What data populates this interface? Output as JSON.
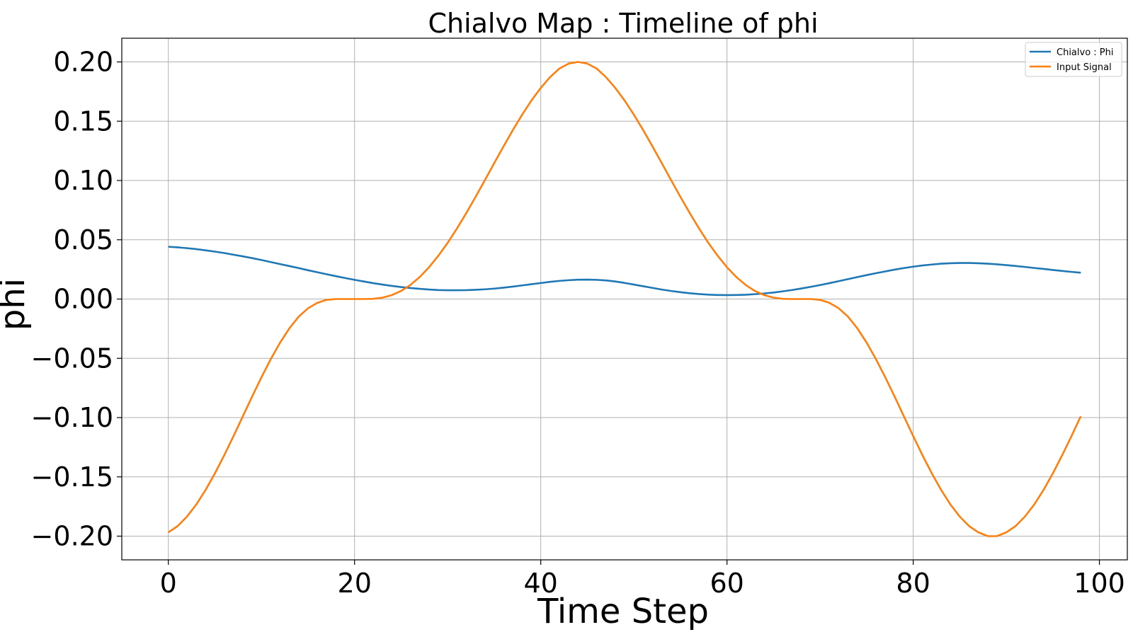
{
  "chart_data": {
    "type": "line",
    "title": "Chialvo Map : Timeline of phi",
    "xlabel": "Time Step",
    "ylabel": "phi",
    "xlim": [
      -5,
      103
    ],
    "ylim": [
      -0.22,
      0.22
    ],
    "xticks": [
      0,
      20,
      40,
      60,
      80,
      100
    ],
    "xtick_labels": [
      "0",
      "20",
      "40",
      "60",
      "80",
      "100"
    ],
    "yticks": [
      -0.2,
      -0.15,
      -0.1,
      -0.05,
      0.0,
      0.05,
      0.1,
      0.15,
      0.2
    ],
    "ytick_labels": [
      "−0.20",
      "−0.15",
      "−0.10",
      "−0.05",
      "0.00",
      "0.05",
      "0.10",
      "0.15",
      "0.20"
    ],
    "grid": true,
    "legend_position": "top-right",
    "x": [
      0,
      1,
      2,
      3,
      4,
      5,
      6,
      7,
      8,
      9,
      10,
      11,
      12,
      13,
      14,
      15,
      16,
      17,
      18,
      19,
      20,
      21,
      22,
      23,
      24,
      25,
      26,
      27,
      28,
      29,
      30,
      31,
      32,
      33,
      34,
      35,
      36,
      37,
      38,
      39,
      40,
      41,
      42,
      43,
      44,
      45,
      46,
      47,
      48,
      49,
      50,
      51,
      52,
      53,
      54,
      55,
      56,
      57,
      58,
      59,
      60,
      61,
      62,
      63,
      64,
      65,
      66,
      67,
      68,
      69,
      70,
      71,
      72,
      73,
      74,
      75,
      76,
      77,
      78,
      79,
      80,
      81,
      82,
      83,
      84,
      85,
      86,
      87,
      88,
      89,
      90,
      91,
      92,
      93,
      94,
      95,
      96,
      97,
      98
    ],
    "series": [
      {
        "name": "Chialvo : Phi",
        "color": "#1f77b4",
        "values": [
          0.0441,
          0.0436,
          0.0429,
          0.0421,
          0.0411,
          0.04,
          0.0388,
          0.0374,
          0.036,
          0.0345,
          0.0329,
          0.0312,
          0.0295,
          0.0278,
          0.0261,
          0.0243,
          0.0226,
          0.0209,
          0.0193,
          0.0177,
          0.0162,
          0.0148,
          0.0134,
          0.0122,
          0.0111,
          0.0101,
          0.0093,
          0.0086,
          0.008,
          0.0076,
          0.0074,
          0.0074,
          0.0075,
          0.0078,
          0.0082,
          0.0088,
          0.0096,
          0.0105,
          0.0115,
          0.0125,
          0.0135,
          0.0145,
          0.0153,
          0.0159,
          0.0163,
          0.0164,
          0.0162,
          0.0157,
          0.0148,
          0.0136,
          0.0122,
          0.0108,
          0.0094,
          0.008,
          0.0068,
          0.0058,
          0.0049,
          0.0042,
          0.0037,
          0.0034,
          0.0033,
          0.0034,
          0.0036,
          0.0041,
          0.0047,
          0.0055,
          0.0065,
          0.0076,
          0.0089,
          0.0103,
          0.0118,
          0.0134,
          0.0151,
          0.0168,
          0.0185,
          0.0202,
          0.0218,
          0.0233,
          0.0248,
          0.0261,
          0.0273,
          0.0283,
          0.0291,
          0.0298,
          0.0302,
          0.0304,
          0.0304,
          0.0302,
          0.0298,
          0.0293,
          0.0286,
          0.0279,
          0.0271,
          0.0262,
          0.0254,
          0.0245,
          0.0237,
          0.0229,
          0.0222
        ]
      },
      {
        "name": "Input Signal",
        "color": "#ff7f0e",
        "values": [
          -0.1968,
          -0.1915,
          -0.1835,
          -0.1733,
          -0.161,
          -0.1471,
          -0.1318,
          -0.1156,
          -0.0989,
          -0.0822,
          -0.066,
          -0.0507,
          -0.0368,
          -0.0247,
          -0.0149,
          -0.0078,
          -0.0032,
          -0.0007,
          0.0,
          0.0,
          0.0,
          0.0,
          0.0002,
          0.0012,
          0.0033,
          0.0068,
          0.0119,
          0.0186,
          0.0268,
          0.0365,
          0.0474,
          0.0595,
          0.0725,
          0.0862,
          0.1003,
          0.1146,
          0.1287,
          0.1425,
          0.1555,
          0.1675,
          0.1781,
          0.1872,
          0.1944,
          0.1986,
          0.2,
          0.1986,
          0.1944,
          0.1872,
          0.1781,
          0.1675,
          0.1555,
          0.1425,
          0.1287,
          0.1146,
          0.1003,
          0.0862,
          0.0725,
          0.0595,
          0.0474,
          0.0365,
          0.0268,
          0.0186,
          0.0119,
          0.0068,
          0.0033,
          0.0012,
          0.0002,
          0.0,
          0.0,
          0.0,
          -0.0007,
          -0.0032,
          -0.0078,
          -0.0149,
          -0.0247,
          -0.0368,
          -0.0507,
          -0.066,
          -0.0822,
          -0.0989,
          -0.1156,
          -0.1318,
          -0.1471,
          -0.161,
          -0.1733,
          -0.1835,
          -0.1915,
          -0.1968,
          -0.2,
          -0.2,
          -0.1968,
          -0.1915,
          -0.1835,
          -0.1733,
          -0.161,
          -0.1471,
          -0.1318,
          -0.1156,
          -0.0989
        ]
      }
    ]
  }
}
